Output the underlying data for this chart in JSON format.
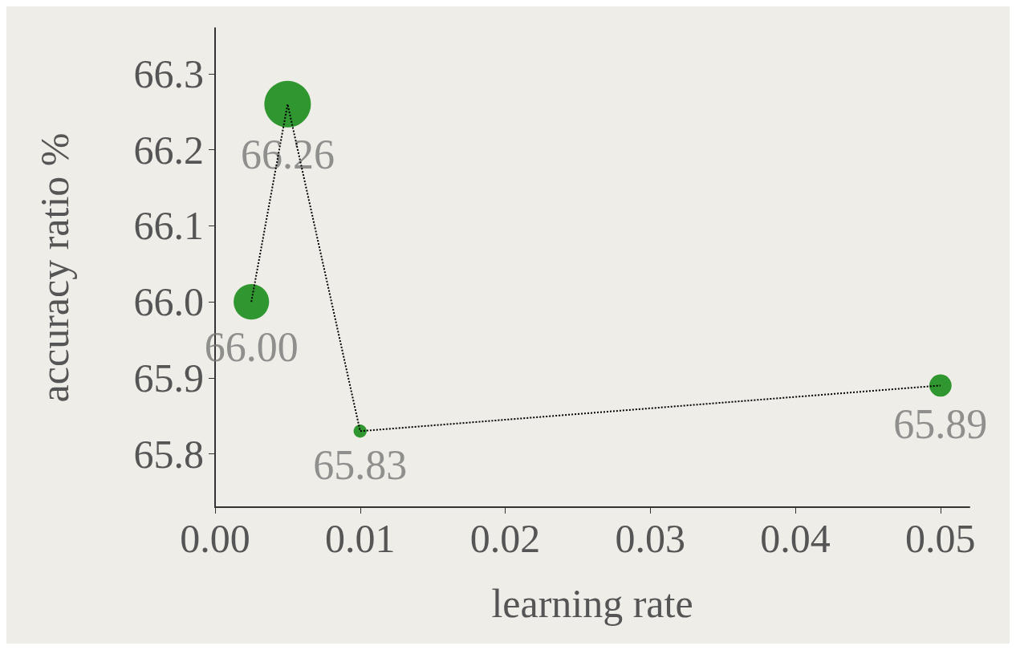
{
  "chart_data": {
    "type": "bubble",
    "xlabel": "learning rate",
    "ylabel": "accuracy ratio %",
    "x": [
      0.0025,
      0.005,
      0.01,
      0.05
    ],
    "series": [
      {
        "color": "#008000",
        "values": [
          66.0,
          66.26,
          65.83,
          65.89
        ],
        "sizes": [
          0.58,
          1,
          0.08,
          0.23
        ],
        "value_labels": [
          "66.00",
          "66.26",
          "65.83",
          "65.89"
        ]
      }
    ],
    "xlim": [
      0,
      0.052
    ],
    "xticks": [
      {
        "value": 0,
        "label": "0.00"
      },
      0.01,
      0.02,
      0.03,
      0.04,
      0.05
    ],
    "ylim": [
      65.73,
      66.36
    ],
    "yticks": [
      65.8,
      65.9,
      {
        "value": 66.0,
        "label": "66.0"
      },
      66.1,
      66.2,
      66.3
    ],
    "grid": false,
    "marker": "circle",
    "line_style": "dotted"
  }
}
